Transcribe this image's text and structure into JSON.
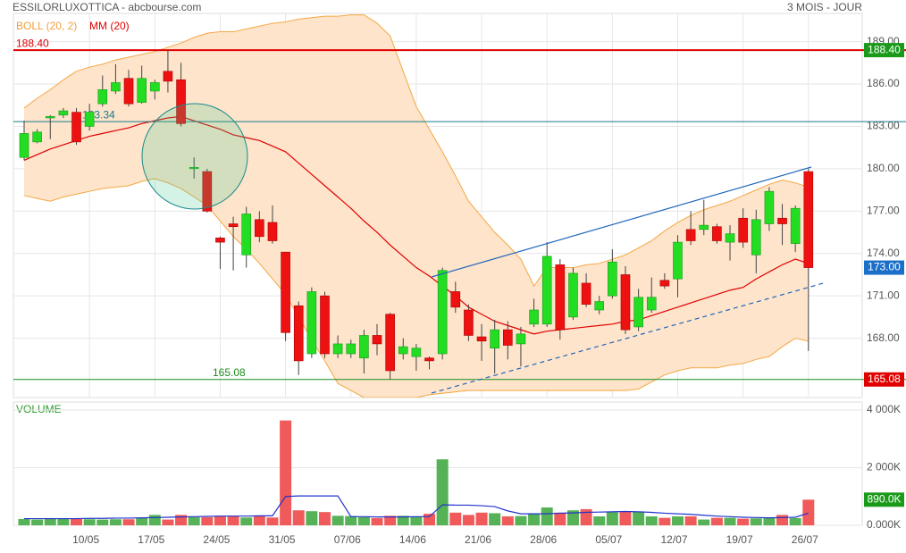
{
  "chart_data": [
    {
      "type": "candlestick",
      "title": "ESSILORLUXOTTICA - abcbourse.com",
      "subtitle": "3 MOIS - JOUR",
      "categories": [
        null,
        null,
        null,
        null,
        null,
        "10/05",
        null,
        null,
        null,
        null,
        "17/05",
        null,
        null,
        null,
        null,
        "24/05",
        null,
        null,
        null,
        null,
        "31/05",
        null,
        null,
        null,
        null,
        "07/06",
        null,
        null,
        null,
        null,
        "14/06",
        null,
        null,
        null,
        null,
        "21/06",
        null,
        null,
        null,
        null,
        "28/06",
        null,
        null,
        null,
        null,
        "05/07",
        null,
        null,
        null,
        null,
        "12/07",
        null,
        null,
        null,
        null,
        "19/07",
        null,
        null,
        null,
        null,
        "26/07"
      ],
      "open": [
        180.8,
        181.9,
        183.6,
        183.8,
        184.0,
        183.0,
        184.6,
        185.5,
        186.4,
        184.7,
        185.5,
        186.9,
        186.3,
        180.1,
        179.8,
        175.1,
        176.1,
        173.9,
        176.4,
        176.2,
        174.1,
        170.3,
        166.9,
        171.0,
        166.9,
        166.9,
        166.6,
        168.2,
        169.7,
        166.9,
        166.7,
        166.6,
        166.9,
        171.3,
        170.0,
        168.1,
        167.3,
        168.6,
        167.6,
        169.0,
        169.0,
        173.2,
        169.5,
        171.9,
        170.0,
        171.0,
        172.5,
        168.8,
        170.0,
        172.1,
        172.2,
        175.7,
        175.7,
        175.9,
        174.8,
        176.5,
        173.9,
        176.1,
        176.5,
        174.7,
        179.8
      ],
      "high": [
        183.4,
        182.8,
        183.8,
        184.3,
        184.3,
        184.6,
        186.6,
        187.4,
        187.0,
        187.3,
        186.3,
        188.4,
        187.5,
        180.8,
        180.0,
        175.2,
        176.6,
        177.3,
        177.0,
        177.4,
        174.1,
        170.6,
        171.6,
        171.3,
        168.2,
        167.9,
        168.6,
        169.0,
        169.8,
        168.0,
        167.6,
        166.7,
        173.0,
        172.0,
        170.4,
        169.0,
        169.3,
        169.2,
        168.8,
        170.8,
        174.8,
        173.6,
        173.0,
        172.6,
        171.0,
        174.3,
        173.1,
        171.5,
        172.3,
        172.6,
        175.3,
        177.0,
        177.8,
        176.1,
        176.0,
        177.2,
        177.1,
        178.7,
        177.5,
        177.4,
        180.0
      ],
      "low": [
        180.6,
        181.8,
        182.1,
        183.6,
        181.7,
        182.7,
        184.4,
        185.3,
        184.4,
        184.6,
        184.9,
        185.4,
        183.0,
        179.3,
        176.9,
        172.9,
        172.8,
        173.0,
        174.8,
        174.7,
        167.8,
        165.4,
        166.6,
        166.6,
        166.6,
        166.6,
        165.5,
        166.8,
        165.1,
        166.5,
        165.7,
        165.8,
        166.5,
        169.8,
        167.8,
        166.4,
        165.5,
        166.5,
        166.0,
        168.8,
        168.8,
        167.9,
        169.3,
        170.2,
        169.7,
        170.8,
        168.3,
        168.5,
        169.8,
        171.5,
        170.9,
        174.6,
        175.3,
        174.7,
        173.5,
        174.4,
        172.6,
        175.6,
        174.6,
        174.1,
        167.1
      ],
      "close": [
        182.5,
        182.6,
        183.7,
        184.1,
        181.9,
        184.0,
        185.6,
        186.1,
        184.6,
        186.4,
        186.1,
        186.2,
        183.2,
        180.1,
        177.0,
        174.8,
        175.9,
        176.8,
        175.2,
        174.9,
        168.4,
        166.4,
        171.3,
        166.9,
        167.6,
        167.6,
        168.2,
        167.6,
        165.7,
        167.4,
        167.3,
        166.4,
        172.8,
        170.2,
        168.2,
        167.8,
        168.6,
        167.5,
        168.3,
        170.0,
        173.8,
        168.6,
        172.6,
        170.4,
        170.6,
        173.4,
        168.6,
        170.9,
        170.9,
        171.7,
        174.8,
        174.9,
        176.0,
        174.9,
        175.4,
        174.8,
        176.4,
        178.4,
        176.1,
        177.2,
        173.0
      ],
      "up_color": "#22dd22",
      "down_color": "#ee1111",
      "bands": {
        "name": "BOLL (20, 2)",
        "color": "#f5a742",
        "fill": "#fde4cb",
        "upper": [
          184.3,
          185.0,
          185.6,
          186.3,
          186.9,
          187.2,
          187.4,
          187.7,
          187.9,
          188.1,
          188.3,
          188.6,
          188.9,
          189.3,
          189.6,
          189.7,
          189.7,
          189.9,
          190.1,
          190.3,
          190.4,
          190.6,
          190.7,
          190.8,
          190.8,
          190.9,
          190.9,
          190.3,
          189.4,
          186.9,
          184.4,
          182.8,
          181.2,
          179.5,
          177.7,
          176.6,
          175.5,
          174.6,
          173.6,
          171.7,
          173.0,
          173.0,
          173.0,
          173.2,
          173.3,
          173.6,
          173.9,
          174.4,
          174.9,
          175.6,
          176.2,
          176.7,
          177.1,
          177.4,
          177.7,
          178.1,
          178.5,
          178.9,
          179.2,
          179.0,
          178.7
        ],
        "lower": [
          178.1,
          177.9,
          177.7,
          178.0,
          178.2,
          178.4,
          178.6,
          178.7,
          178.8,
          179.1,
          179.3,
          179.0,
          178.6,
          178.0,
          177.4,
          176.3,
          175.2,
          174.3,
          173.3,
          172.2,
          171.1,
          169.5,
          167.9,
          166.4,
          164.8,
          164.3,
          163.8,
          163.8,
          163.8,
          163.8,
          163.8,
          164.0,
          164.1,
          164.2,
          164.3,
          164.3,
          164.3,
          164.3,
          164.3,
          164.3,
          164.3,
          164.3,
          164.3,
          164.3,
          164.3,
          164.3,
          164.3,
          164.4,
          164.9,
          165.4,
          165.7,
          165.9,
          165.9,
          165.9,
          166.1,
          166.2,
          166.5,
          166.7,
          167.4,
          168.0,
          167.8
        ]
      },
      "series": [
        {
          "name": "MM (20)",
          "color": "#e00000",
          "values": [
            180.6,
            181.0,
            181.4,
            181.7,
            182.0,
            182.3,
            182.5,
            182.7,
            182.9,
            183.2,
            183.4,
            183.6,
            183.7,
            183.4,
            183.1,
            182.8,
            182.4,
            182.2,
            182.0,
            181.6,
            181.2,
            180.4,
            179.6,
            178.8,
            178.0,
            177.2,
            176.3,
            175.5,
            174.6,
            173.8,
            173.0,
            172.4,
            171.7,
            171.0,
            170.2,
            169.7,
            169.2,
            168.9,
            168.6,
            168.3,
            168.5,
            168.6,
            168.7,
            168.8,
            168.9,
            169.0,
            169.2,
            169.3,
            169.6,
            169.9,
            170.2,
            170.5,
            170.8,
            171.1,
            171.4,
            171.6,
            172.2,
            172.7,
            173.2,
            173.6,
            173.3
          ]
        }
      ],
      "hlines": [
        {
          "value": 188.4,
          "label": "188.40",
          "color": "#e00000",
          "box_color": "#1a9a1a"
        },
        {
          "value": 183.34,
          "label": "183.34",
          "color": "#1a7a8a"
        },
        {
          "value": 165.08,
          "label": "165.08",
          "color": "#1a8a1a",
          "box_color": "#e00000"
        }
      ],
      "last": {
        "value": 173.0,
        "label": "173.00",
        "color": "#1a6fc9"
      },
      "ylim": [
        163.8,
        191.0
      ],
      "yticks": [
        {
          "value": 168,
          "label": "168.00"
        },
        {
          "value": 171,
          "label": "171.00"
        },
        {
          "value": 174,
          "label": "174.00"
        },
        {
          "value": 177,
          "label": "177.00"
        },
        {
          "value": 180,
          "label": "180.00"
        },
        {
          "value": 183,
          "label": "183.00"
        },
        {
          "value": 186,
          "label": "186.00"
        },
        {
          "value": 189,
          "label": "189.00"
        }
      ],
      "grid": true
    },
    {
      "type": "bar",
      "title": "VOLUME",
      "values": [
        220,
        200,
        250,
        220,
        230,
        210,
        200,
        210,
        210,
        250,
        360,
        200,
        360,
        280,
        280,
        310,
        310,
        270,
        330,
        270,
        3640,
        520,
        490,
        460,
        330,
        320,
        280,
        250,
        330,
        330,
        310,
        400,
        2290,
        440,
        360,
        440,
        420,
        310,
        320,
        400,
        620,
        440,
        520,
        560,
        310,
        450,
        490,
        480,
        310,
        260,
        310,
        310,
        200,
        260,
        260,
        230,
        240,
        260,
        360,
        250,
        890
      ],
      "ma": [
        230,
        230,
        230,
        230,
        230,
        240,
        240,
        250,
        250,
        260,
        270,
        280,
        290,
        300,
        310,
        320,
        320,
        320,
        330,
        330,
        1000,
        1020,
        1020,
        1020,
        1020,
        300,
        300,
        290,
        290,
        290,
        300,
        300,
        710,
        700,
        700,
        680,
        650,
        500,
        400,
        400,
        400,
        420,
        430,
        450,
        460,
        470,
        480,
        470,
        450,
        420,
        400,
        380,
        350,
        320,
        300,
        280,
        270,
        260,
        270,
        280,
        420
      ],
      "ma_color": "#2233cc",
      "up_color": "#44aa44",
      "down_color": "#f04848",
      "ylim": [
        0,
        4280
      ],
      "yticks": [
        {
          "value": 0,
          "label": "0.000K"
        },
        {
          "value": 2000,
          "label": "2 000K"
        },
        {
          "value": 4000,
          "label": "4 000K"
        }
      ],
      "last": {
        "value": 890,
        "label": "890.0K",
        "color": "#1a9a1a"
      },
      "grid": true
    }
  ]
}
